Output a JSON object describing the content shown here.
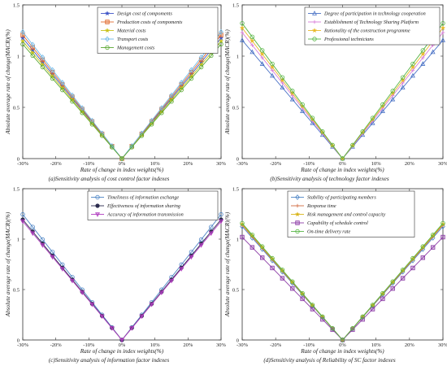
{
  "chart_data": [
    {
      "type": "line",
      "caption": "(a)Sensitivity analysis of cost control factor indexes",
      "xlabel": "Rate of change in index weights(%)",
      "ylabel": "Absolute average rate of change(MACR)(%)",
      "x": [
        -30,
        -27,
        -24,
        -21,
        -18,
        -15,
        -12,
        -9,
        -6,
        -3,
        0,
        3,
        6,
        9,
        12,
        15,
        18,
        21,
        24,
        27,
        30
      ],
      "xticks": [
        "-30%",
        "-20%",
        "-10%",
        "0%",
        "10%",
        "20%",
        "30%"
      ],
      "xtick_values": [
        -30,
        -20,
        -10,
        0,
        10,
        20,
        30
      ],
      "yticks": [
        "0",
        "0.5",
        "1",
        "1.5"
      ],
      "ytick_values": [
        0,
        0.5,
        1,
        1.5
      ],
      "xlim": [
        -30,
        30
      ],
      "ylim": [
        0,
        1.5
      ],
      "legend_position": "top-right",
      "series": [
        {
          "name": "Design cost of compoments",
          "color": "#3f55c8",
          "marker": "star",
          "slope": 0.0392
        },
        {
          "name": "Production costs of compoments",
          "color": "#e06a2e",
          "marker": "square",
          "slope": 0.0402
        },
        {
          "name": "Material costs",
          "color": "#c9c21a",
          "marker": "star",
          "slope": 0.0382
        },
        {
          "name": "Transport costs",
          "color": "#6fb8e8",
          "marker": "diamond",
          "slope": 0.0412
        },
        {
          "name": "Management costs",
          "color": "#5aa832",
          "marker": "circle",
          "slope": 0.0372
        }
      ]
    },
    {
      "type": "line",
      "caption": "(b)Sensitivity analysis of technology factor indexes",
      "xlabel": "Rate of change in index weights(%)",
      "ylabel": "Absolute average rate of change(MACR)(%)",
      "x": [
        -30,
        -27,
        -24,
        -21,
        -18,
        -15,
        -12,
        -9,
        -6,
        -3,
        0,
        3,
        6,
        9,
        12,
        15,
        18,
        21,
        24,
        27,
        30
      ],
      "xticks": [
        "-30%",
        "-20%",
        "-10%",
        "0%",
        "10%",
        "20%",
        "30%"
      ],
      "xtick_values": [
        -30,
        -20,
        -10,
        0,
        10,
        20,
        30
      ],
      "yticks": [
        "0",
        "0.5",
        "1",
        "1.5"
      ],
      "ytick_values": [
        0,
        0.5,
        1,
        1.5
      ],
      "xlim": [
        -30,
        30
      ],
      "ylim": [
        0,
        1.5
      ],
      "legend_position": "top-right",
      "series": [
        {
          "name": "Degree of participation in technology cooperation",
          "color": "#4a72c6",
          "marker": "triangle",
          "slope": 0.0385
        },
        {
          "name": "Establishment of Technology Sharing Platform",
          "color": "#d77bd8",
          "marker": "plus",
          "slope": 0.041
        },
        {
          "name": "Rationality of the construction programme",
          "color": "#e9b92a",
          "marker": "star",
          "slope": 0.0425
        },
        {
          "name": "Professional technicians",
          "color": "#58b646",
          "marker": "circle",
          "slope": 0.044
        }
      ]
    },
    {
      "type": "line",
      "caption": "(c)Sensitivity analysis of information factor indexes",
      "xlabel": "Rate of change in index weights(%)",
      "ylabel": "Absolute average rate of change(MACR)(%)",
      "x": [
        -30,
        -27,
        -24,
        -21,
        -18,
        -15,
        -12,
        -9,
        -6,
        -3,
        0,
        3,
        6,
        9,
        12,
        15,
        18,
        21,
        24,
        27,
        30
      ],
      "xticks": [
        "-30%",
        "-20%",
        "-10%",
        "0%",
        "10%",
        "20%",
        "30%"
      ],
      "xtick_values": [
        -30,
        -20,
        -10,
        0,
        10,
        20,
        30
      ],
      "yticks": [
        "0",
        "0.5",
        "1",
        "1.5"
      ],
      "ytick_values": [
        0,
        0.5,
        1,
        1.5
      ],
      "xlim": [
        -30,
        30
      ],
      "ylim": [
        0,
        1.5
      ],
      "legend_position": "top-right",
      "series": [
        {
          "name": "Timeliness of information exchange",
          "color": "#4f86c6",
          "marker": "circle",
          "slope": 0.0415
        },
        {
          "name": "Effectiveness of information sharing",
          "color": "#2c2c4e",
          "marker": "circle-filled",
          "slope": 0.0398
        },
        {
          "name": "Accuracy of information transmission",
          "color": "#b23fc0",
          "marker": "triangle-down",
          "slope": 0.0392
        }
      ]
    },
    {
      "type": "line",
      "caption": "(d)Sensitivity analysis of Reliability of SC factor indexes",
      "xlabel": "Rate of change in index weights(%)",
      "ylabel": "Absolute average rate of change(MACR)(%)",
      "x": [
        -30,
        -27,
        -24,
        -21,
        -18,
        -15,
        -12,
        -9,
        -6,
        -3,
        0,
        3,
        6,
        9,
        12,
        15,
        18,
        21,
        24,
        27,
        30
      ],
      "xticks": [
        "-30%",
        "-20%",
        "-10%",
        "0%",
        "10%",
        "20%",
        "30%"
      ],
      "xtick_values": [
        -30,
        -20,
        -10,
        0,
        10,
        20,
        30
      ],
      "yticks": [
        "0",
        "0.5",
        "1",
        "1.5"
      ],
      "ytick_values": [
        0,
        0.5,
        1,
        1.5
      ],
      "xlim": [
        -30,
        30
      ],
      "ylim": [
        0,
        1.5
      ],
      "legend_position": "top-left",
      "series": [
        {
          "name": "Stability of participating members",
          "color": "#4f86c6",
          "marker": "diamond",
          "slope": 0.0375
        },
        {
          "name": "Response time",
          "color": "#d26a40",
          "marker": "plus",
          "slope": 0.038
        },
        {
          "name": "Risk management and control capacity",
          "color": "#d9b51a",
          "marker": "star",
          "slope": 0.0383
        },
        {
          "name": "Capability of schedule control",
          "color": "#8e3ea8",
          "marker": "square",
          "slope": 0.034
        },
        {
          "name": "On-time delivery rate",
          "color": "#58b646",
          "marker": "circle",
          "slope": 0.0386
        }
      ]
    }
  ]
}
